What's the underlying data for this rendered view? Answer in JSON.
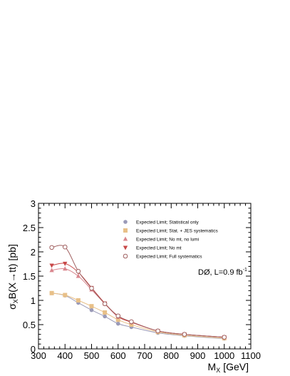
{
  "chart_data": {
    "type": "line",
    "xlabel": "M",
    "xlabel_sub": "X",
    "xlabel_unit": "[GeV]",
    "ylabel": "σ",
    "ylabel_sub": "X",
    "ylabel_rest": "B(X→tt)  [pb]",
    "xlim": [
      300,
      1100
    ],
    "ylim": [
      0,
      3
    ],
    "xticks": [
      300,
      400,
      500,
      600,
      700,
      800,
      900,
      1000,
      1100
    ],
    "yticks": [
      0,
      0.5,
      1,
      1.5,
      2,
      2.5,
      3
    ],
    "xtick_labels": [
      "300",
      "400",
      "500",
      "600",
      "700",
      "800",
      "900",
      "1000",
      "1100"
    ],
    "ytick_labels": [
      "0",
      "0.5",
      "1",
      "1.5",
      "2",
      "2.5",
      "3"
    ],
    "annotation": "DØ, L=0.9 fb",
    "annotation_sup": "-1",
    "legend_position": "top-right",
    "x": [
      350,
      400,
      450,
      500,
      550,
      600,
      650,
      750,
      850,
      1000
    ],
    "series": [
      {
        "name": "Expected Limit; Statistical only",
        "marker": "circle",
        "color": "#9a9ab8",
        "values": [
          1.15,
          1.1,
          0.95,
          0.8,
          0.67,
          0.52,
          0.45,
          0.33,
          0.27,
          0.21
        ]
      },
      {
        "name": "Expected Limit; Stat. + JES systematics",
        "marker": "square",
        "color": "#e8c088",
        "values": [
          1.15,
          1.11,
          1.0,
          0.88,
          0.75,
          0.6,
          0.5,
          0.35,
          0.28,
          0.22
        ]
      },
      {
        "name": "Expected Limit; No mt, no lumi",
        "marker": "triangle-up",
        "color": "#d9868e",
        "values": [
          1.62,
          1.65,
          1.5,
          1.22,
          0.93,
          0.66,
          0.55,
          0.37,
          0.3,
          0.24
        ]
      },
      {
        "name": "Expected Limit; No mt",
        "marker": "triangle-down",
        "color": "#c84848",
        "values": [
          1.72,
          1.76,
          1.58,
          1.26,
          0.94,
          0.67,
          0.55,
          0.37,
          0.3,
          0.24
        ]
      },
      {
        "name": "Expected Limit; Full systematics",
        "marker": "open-circle",
        "color": "#a06060",
        "values": [
          2.09,
          2.1,
          1.6,
          1.25,
          0.93,
          0.68,
          0.56,
          0.37,
          0.3,
          0.24
        ]
      }
    ]
  }
}
